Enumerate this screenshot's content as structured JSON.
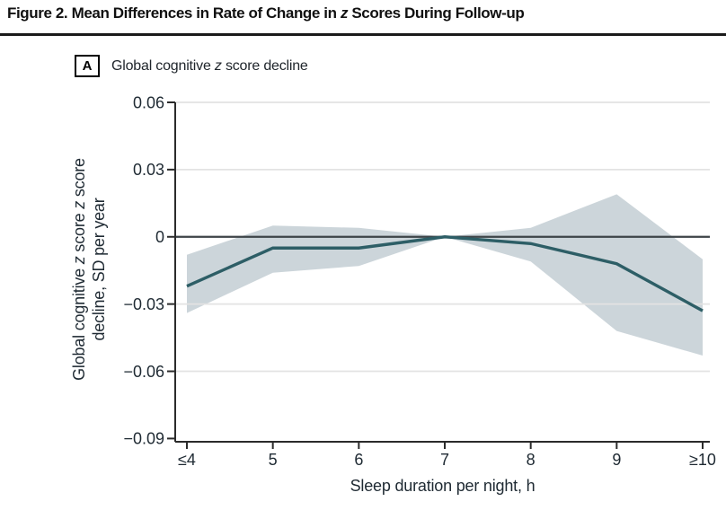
{
  "figure": {
    "title_segments": [
      {
        "t": "Figure 2. Mean Differences in Rate of Change in "
      },
      {
        "t": "z",
        "i": true
      },
      {
        "t": " Scores During Follow-up"
      }
    ],
    "panel_label": "A",
    "panel_title_segments": [
      {
        "t": "Global cognitive "
      },
      {
        "t": "z",
        "i": true
      },
      {
        "t": " score decline"
      }
    ]
  },
  "axes": {
    "x_label": "Sleep duration per night, h",
    "y_label_line1_segments": [
      {
        "t": "Global cognitive "
      },
      {
        "t": "z",
        "i": true
      },
      {
        "t": " score "
      },
      {
        "t": "z",
        "i": true
      },
      {
        "t": " score"
      }
    ],
    "y_label_line2_segments": [
      {
        "t": "decline, SD per year"
      }
    ],
    "y_tick_labels": [
      "0.06",
      "0.03",
      "0",
      "−0.03",
      "−0.06",
      "−0.09"
    ],
    "x_tick_labels": [
      "≤4",
      "5",
      "6",
      "7",
      "8",
      "9",
      "≥10"
    ]
  },
  "chart_data": {
    "type": "line",
    "title": "Figure 2. Mean Differences in Rate of Change in z Scores During Follow-up",
    "panel": "A — Global cognitive z score decline",
    "categories": [
      "≤4",
      "5",
      "6",
      "7",
      "8",
      "9",
      "≥10"
    ],
    "xlabel": "Sleep duration per night, h",
    "ylabel": "Global cognitive z score z score decline, SD per year",
    "ylim": [
      -0.09,
      0.06
    ],
    "yticks": [
      0.06,
      0.03,
      0,
      -0.03,
      -0.06,
      -0.09
    ],
    "grid": true,
    "reference_line_y": 0,
    "reference_category": "7",
    "legend": "none",
    "series": [
      {
        "name": "Mean difference in rate of change (SD per year)",
        "values": [
          -0.022,
          -0.005,
          -0.005,
          0,
          -0.003,
          -0.012,
          -0.033
        ]
      },
      {
        "name": "95% CI upper bound",
        "values": [
          -0.008,
          0.005,
          0.004,
          0,
          0.004,
          0.019,
          -0.01
        ]
      },
      {
        "name": "95% CI lower bound",
        "values": [
          -0.034,
          -0.016,
          -0.013,
          0,
          -0.011,
          -0.042,
          -0.053
        ]
      }
    ]
  },
  "colors": {
    "estimate_line": "#2d5e66",
    "ci_band": "#ccd5da",
    "gridline": "#e3e3e3",
    "zero_line": "#3d4347",
    "axis": "#2b2b2b",
    "tick_text": "#1f2a33"
  }
}
